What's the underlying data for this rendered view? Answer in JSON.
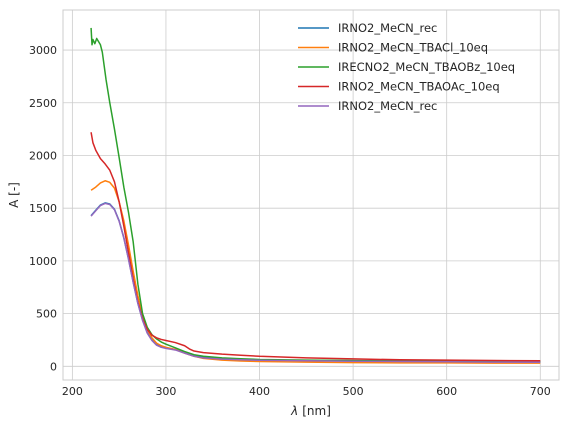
{
  "chart_data": {
    "type": "line",
    "title": "",
    "xlabel_symbol": "λ",
    "xlabel_unit": "[nm]",
    "ylabel": "A [-]",
    "xlim": [
      190,
      720
    ],
    "ylim": [
      -130,
      3380
    ],
    "xticks": [
      200,
      300,
      400,
      500,
      600,
      700
    ],
    "yticks": [
      0,
      500,
      1000,
      1500,
      2000,
      2500,
      3000
    ],
    "grid": true,
    "legend_position": "top-right",
    "series": [
      {
        "name": "IRNO2_MeCN_rec",
        "color": "#1f77b4",
        "x": [
          220,
          225,
          230,
          235,
          240,
          245,
          250,
          255,
          260,
          265,
          270,
          275,
          280,
          285,
          290,
          295,
          300,
          310,
          320,
          330,
          340,
          360,
          380,
          400,
          450,
          500,
          550,
          600,
          650,
          700
        ],
        "y": [
          1430,
          1480,
          1530,
          1550,
          1540,
          1490,
          1380,
          1220,
          1020,
          800,
          600,
          440,
          320,
          250,
          205,
          185,
          175,
          160,
          130,
          100,
          85,
          72,
          65,
          60,
          55,
          50,
          47,
          45,
          42,
          40
        ]
      },
      {
        "name": "IRNO2_MeCN_TBACl_10eq",
        "color": "#ff7f0e",
        "x": [
          220,
          225,
          230,
          235,
          240,
          245,
          250,
          255,
          260,
          265,
          270,
          275,
          280,
          285,
          290,
          295,
          300,
          310,
          320,
          330,
          340,
          360,
          380,
          400,
          450,
          500,
          550,
          600,
          650,
          700
        ],
        "y": [
          1670,
          1700,
          1740,
          1760,
          1745,
          1690,
          1560,
          1380,
          1150,
          900,
          670,
          480,
          350,
          270,
          220,
          195,
          180,
          160,
          125,
          95,
          75,
          58,
          50,
          45,
          40,
          35,
          33,
          32,
          30,
          30
        ]
      },
      {
        "name": "IRECNO2_MeCN_TBAOBz_10eq",
        "color": "#2ca02c",
        "x": [
          220,
          221,
          222,
          224,
          226,
          228,
          230,
          232,
          234,
          236,
          240,
          245,
          250,
          255,
          260,
          265,
          270,
          275,
          280,
          285,
          290,
          295,
          300,
          310,
          320,
          330,
          340,
          360,
          380,
          400,
          450,
          500,
          550,
          600,
          650,
          700
        ],
        "y": [
          3210,
          3050,
          3100,
          3060,
          3110,
          3080,
          3050,
          2980,
          2850,
          2720,
          2500,
          2250,
          1980,
          1700,
          1460,
          1180,
          780,
          500,
          370,
          300,
          260,
          230,
          210,
          175,
          140,
          110,
          95,
          80,
          72,
          65,
          58,
          55,
          52,
          50,
          48,
          46
        ]
      },
      {
        "name": "IRNO2_MeCN_TBAOAc_10eq",
        "color": "#d62728",
        "x": [
          220,
          222,
          225,
          230,
          235,
          240,
          245,
          250,
          255,
          260,
          265,
          270,
          275,
          280,
          285,
          290,
          295,
          300,
          310,
          320,
          325,
          330,
          340,
          360,
          380,
          400,
          450,
          500,
          550,
          600,
          650,
          700
        ],
        "y": [
          2220,
          2120,
          2050,
          1970,
          1920,
          1860,
          1750,
          1560,
          1330,
          1080,
          830,
          610,
          450,
          350,
          295,
          270,
          255,
          245,
          225,
          195,
          165,
          145,
          130,
          115,
          105,
          95,
          80,
          70,
          62,
          58,
          55,
          52
        ]
      },
      {
        "name": "IRNO2_MeCN_rec",
        "color": "#9467bd",
        "x": [
          220,
          225,
          230,
          235,
          240,
          245,
          250,
          255,
          260,
          265,
          270,
          275,
          280,
          285,
          290,
          295,
          300,
          310,
          320,
          330,
          340,
          360,
          380,
          400,
          450,
          500,
          550,
          600,
          650,
          700
        ],
        "y": [
          1425,
          1475,
          1525,
          1545,
          1535,
          1485,
          1375,
          1215,
          1015,
          795,
          595,
          435,
          315,
          245,
          200,
          180,
          170,
          155,
          125,
          95,
          80,
          68,
          62,
          57,
          52,
          48,
          45,
          43,
          40,
          38
        ]
      }
    ]
  }
}
